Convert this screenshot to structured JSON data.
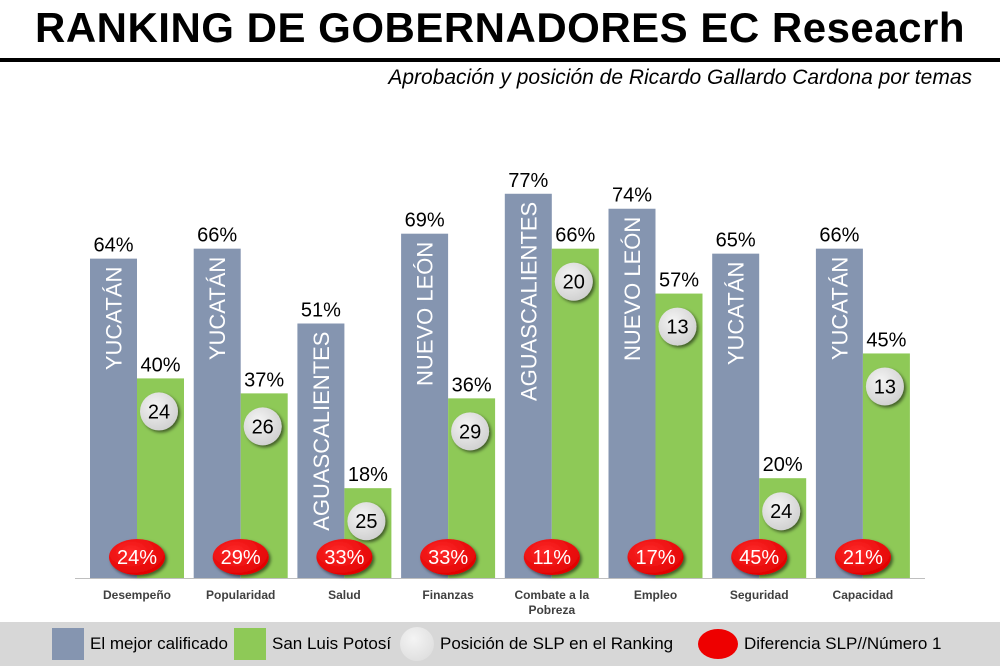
{
  "header": {
    "title": "RANKING DE GOBERNADORES EC Reseacrh",
    "subtitle": "Aprobación y posición de Ricardo Gallardo Cardona por temas"
  },
  "colors": {
    "best": "#8595b0",
    "slp": "#8ec957",
    "rank_circle": "#d9d9d9",
    "diff_oval": "#ee0000",
    "legend_bg": "#d7d7d7"
  },
  "chart_data": {
    "type": "bar",
    "categories": [
      "Desempeño",
      "Popularidad",
      "Salud",
      "Finanzas",
      "Combate a la Pobreza",
      "Empleo",
      "Seguridad",
      "Capacidad"
    ],
    "series": [
      {
        "name": "El mejor calificado",
        "values": [
          64,
          66,
          51,
          69,
          77,
          74,
          65,
          66
        ],
        "value_labels": [
          "64%",
          "66%",
          "51%",
          "69%",
          "77%",
          "74%",
          "65%",
          "66%"
        ],
        "bar_labels": [
          "YUCATÁN",
          "YUCATÁN",
          "AGUASCALIENTES",
          "NUEVO LEÓN",
          "AGUASCALIENTES",
          "NUEVO LEÓN",
          "YUCATÁN",
          "YUCATÁN"
        ]
      },
      {
        "name": "San Luis Potosí",
        "values": [
          40,
          37,
          18,
          36,
          66,
          57,
          20,
          45
        ],
        "value_labels": [
          "40%",
          "37%",
          "18%",
          "36%",
          "66%",
          "57%",
          "20%",
          "45%"
        ]
      }
    ],
    "slp_rank": [
      "24",
      "26",
      "25",
      "29",
      "20",
      "13",
      "24",
      "13"
    ],
    "difference": [
      "24%",
      "29%",
      "33%",
      "33%",
      "11%",
      "17%",
      "45%",
      "21%"
    ],
    "ylim": [
      0,
      90
    ],
    "grid": false,
    "legend_position": "bottom"
  },
  "legend": {
    "items": [
      {
        "label": "El mejor calificado"
      },
      {
        "label": "San Luis Potosí"
      },
      {
        "label": "Posición de SLP en el Ranking"
      },
      {
        "label": "Diferencia SLP//Número 1"
      }
    ]
  }
}
